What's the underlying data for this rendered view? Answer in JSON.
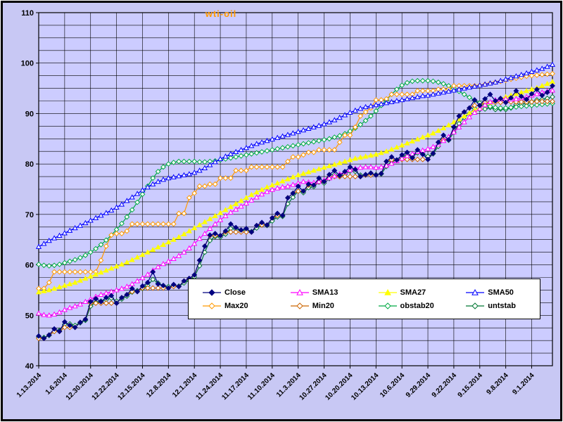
{
  "chart_data": {
    "type": "line",
    "title": "wti-oil",
    "title_color": "#ff9900",
    "chart_bg": "#c8c8f4",
    "plot_bg": "#ccccff",
    "grid_color": "#000000",
    "axis_color": "#000000",
    "ylim": [
      40,
      110
    ],
    "y_minor_step": 2.5,
    "y_tick_labels": [
      110,
      100,
      90,
      80,
      70,
      60,
      50,
      40
    ],
    "x_ticks_every": 5,
    "x_tick_labels": [
      "1.13.2014",
      "1.6.2014",
      "12.30.2014",
      "12.22.2014",
      "12.15.2014",
      "12.8.2014",
      "12.1.2014",
      "11.24.2014",
      "11.17.2014",
      "11.10.2014",
      "11.3.2014",
      "10.27.2014",
      "10.20.2014",
      "10.13.2014",
      "10.6.2014",
      "9.29.2014",
      "9.22.2014",
      "9.15.2014",
      "9.8.2014",
      "9.1.2014"
    ],
    "legend_rows": [
      [
        "Close",
        "SMA13",
        "SMA27",
        "SMA50"
      ],
      [
        "Max20",
        "Min20",
        "obstab20",
        "untstab"
      ]
    ],
    "series": [
      {
        "name": "Close",
        "color": "#000080",
        "marker": "diamond",
        "marker_fill": "solid",
        "values": [
          45.9,
          45.4,
          46.1,
          47.3,
          46.8,
          48.7,
          48.0,
          47.6,
          48.6,
          49.2,
          52.7,
          53.3,
          52.7,
          53.5,
          53.9,
          52.4,
          53.5,
          54.1,
          55.3,
          54.7,
          55.8,
          56.5,
          58.6,
          56.2,
          55.9,
          55.4,
          56.1,
          55.7,
          56.8,
          57.3,
          58.0,
          60.9,
          63.7,
          65.9,
          66.2,
          65.8,
          66.7,
          68.1,
          67.4,
          66.9,
          67.2,
          66.5,
          67.8,
          68.4,
          67.9,
          69.3,
          70.2,
          69.8,
          73.3,
          74.2,
          75.6,
          74.6,
          76.0,
          75.8,
          77.2,
          76.5,
          77.9,
          78.7,
          77.7,
          78.5,
          79.4,
          78.9,
          77.5,
          77.9,
          78.2,
          77.8,
          78.1,
          80.5,
          81.4,
          80.8,
          81.8,
          82.3,
          81.2,
          82.8,
          81.9,
          80.9,
          82.1,
          84.3,
          85.7,
          84.8,
          87.3,
          89.5,
          90.3,
          91.1,
          92.7,
          91.6,
          92.9,
          93.8,
          92.5,
          93.0,
          92.2,
          93.1,
          94.5,
          93.4,
          92.8,
          93.9,
          94.8,
          93.6,
          94.2,
          95.5
        ]
      },
      {
        "name": "SMA13",
        "color": "#ff00ff",
        "marker": "triangle",
        "marker_fill": "open",
        "values": [
          50.4,
          50.1,
          50.0,
          50.2,
          50.6,
          51.1,
          51.5,
          51.8,
          52.2,
          52.7,
          53.2,
          53.7,
          54.1,
          54.4,
          54.7,
          55.0,
          55.3,
          55.7,
          56.2,
          56.8,
          57.4,
          58.1,
          58.9,
          59.6,
          60.2,
          60.7,
          61.2,
          61.8,
          62.5,
          63.3,
          64.2,
          65.2,
          66.2,
          67.2,
          68.1,
          68.9,
          69.7,
          70.4,
          71.0,
          71.6,
          72.2,
          72.8,
          73.4,
          74.0,
          74.5,
          74.9,
          75.2,
          75.4,
          75.6,
          75.9,
          76.2,
          76.5,
          76.4,
          76.3,
          76.5,
          76.8,
          77.2,
          77.6,
          78.0,
          78.4,
          78.8,
          79.1,
          79.3,
          79.4,
          79.4,
          79.3,
          79.4,
          79.7,
          80.1,
          80.6,
          81.1,
          81.6,
          82.0,
          82.4,
          82.7,
          83.0,
          83.4,
          83.9,
          84.6,
          85.4,
          86.3,
          87.3,
          88.3,
          89.3,
          90.2,
          91.0,
          91.7,
          92.3,
          92.7,
          92.9,
          92.9,
          92.8,
          92.9,
          93.1,
          93.3,
          93.6,
          93.9,
          94.2,
          94.4,
          94.6
        ]
      },
      {
        "name": "SMA27",
        "color": "#ffff00",
        "marker": "triangle",
        "marker_fill": "solid",
        "values": [
          54.6,
          54.8,
          55.0,
          55.3,
          55.6,
          55.9,
          56.2,
          56.5,
          56.9,
          57.3,
          57.7,
          58.1,
          58.5,
          58.9,
          59.3,
          59.7,
          60.1,
          60.5,
          61.0,
          61.5,
          62.0,
          62.5,
          63.0,
          63.5,
          64.0,
          64.5,
          65.0,
          65.5,
          66.1,
          66.7,
          67.3,
          67.9,
          68.5,
          69.1,
          69.7,
          70.3,
          70.9,
          71.5,
          72.1,
          72.7,
          73.3,
          73.9,
          74.4,
          74.9,
          75.4,
          75.8,
          76.2,
          76.6,
          77.0,
          77.4,
          77.8,
          78.1,
          78.4,
          78.7,
          79.0,
          79.3,
          79.6,
          79.9,
          80.2,
          80.5,
          80.8,
          81.1,
          81.3,
          81.5,
          81.7,
          81.9,
          82.2,
          82.5,
          82.9,
          83.3,
          83.7,
          84.1,
          84.5,
          84.9,
          85.3,
          85.7,
          86.1,
          86.6,
          87.1,
          87.7,
          88.3,
          88.9,
          89.5,
          90.1,
          90.7,
          91.2,
          91.7,
          92.2,
          92.6,
          93.0,
          93.3,
          93.6,
          93.9,
          94.2,
          94.5,
          94.8,
          95.1,
          95.5,
          95.9,
          96.3
        ]
      },
      {
        "name": "SMA50",
        "color": "#0000ff",
        "marker": "triangle",
        "marker_fill": "open",
        "values": [
          63.6,
          64.2,
          64.8,
          65.3,
          65.8,
          66.3,
          66.8,
          67.3,
          67.8,
          68.3,
          68.8,
          69.3,
          69.8,
          70.3,
          70.8,
          71.4,
          72.0,
          72.7,
          73.4,
          74.1,
          74.8,
          75.4,
          76.0,
          76.5,
          76.9,
          77.2,
          77.4,
          77.6,
          77.8,
          78.0,
          78.3,
          78.7,
          79.2,
          79.8,
          80.4,
          81.0,
          81.5,
          82.0,
          82.4,
          82.8,
          83.2,
          83.6,
          84.0,
          84.3,
          84.6,
          84.9,
          85.2,
          85.5,
          85.8,
          86.1,
          86.4,
          86.7,
          87.0,
          87.3,
          87.6,
          87.9,
          88.3,
          88.7,
          89.2,
          89.7,
          90.2,
          90.6,
          91.0,
          91.3,
          91.5,
          91.7,
          91.9,
          92.1,
          92.3,
          92.5,
          92.7,
          92.9,
          93.1,
          93.3,
          93.5,
          93.6,
          93.8,
          94.0,
          94.2,
          94.4,
          94.6,
          94.8,
          95.0,
          95.2,
          95.4,
          95.6,
          95.8,
          96.0,
          96.2,
          96.5,
          96.8,
          97.1,
          97.4,
          97.7,
          98.0,
          98.3,
          98.6,
          98.9,
          99.3,
          99.7
        ]
      },
      {
        "name": "Max20",
        "color": "#ff9900",
        "marker": "diamond",
        "marker_fill": "open",
        "values": [
          55.3,
          55.3,
          56.5,
          58.6,
          58.6,
          58.6,
          58.6,
          58.6,
          58.6,
          58.6,
          58.6,
          58.6,
          60.9,
          63.7,
          65.9,
          66.2,
          66.2,
          66.7,
          68.1,
          68.1,
          68.1,
          68.1,
          68.1,
          68.1,
          68.1,
          68.1,
          68.1,
          70.2,
          70.2,
          73.3,
          74.2,
          75.6,
          75.6,
          76.0,
          76.0,
          77.2,
          77.2,
          77.2,
          78.7,
          78.7,
          78.7,
          79.4,
          79.4,
          79.4,
          79.4,
          79.4,
          79.4,
          79.4,
          80.5,
          81.4,
          81.4,
          81.8,
          82.3,
          82.3,
          82.8,
          82.8,
          82.8,
          82.8,
          84.3,
          85.7,
          85.7,
          87.3,
          89.5,
          90.3,
          91.1,
          92.7,
          92.7,
          92.9,
          93.8,
          93.8,
          93.8,
          93.8,
          93.8,
          94.5,
          94.5,
          94.5,
          94.5,
          94.8,
          94.8,
          94.8,
          95.5,
          95.5,
          95.5,
          95.5,
          95.5,
          95.6,
          95.8,
          96.0,
          96.2,
          96.4,
          96.6,
          96.8,
          97.0,
          97.2,
          97.4,
          97.5,
          97.6,
          97.7,
          97.8,
          97.9
        ]
      },
      {
        "name": "Min20",
        "color": "#cc6600",
        "marker": "diamond",
        "marker_fill": "open",
        "values": [
          45.4,
          45.4,
          46.1,
          46.8,
          46.8,
          47.6,
          47.6,
          47.6,
          48.6,
          49.2,
          52.4,
          52.4,
          52.4,
          52.4,
          52.4,
          52.4,
          53.5,
          54.1,
          54.7,
          54.7,
          55.4,
          55.4,
          55.4,
          55.4,
          55.4,
          55.4,
          55.7,
          55.7,
          56.8,
          57.3,
          58.0,
          60.9,
          63.7,
          65.8,
          65.8,
          65.8,
          66.5,
          66.5,
          66.5,
          66.5,
          66.5,
          66.5,
          67.8,
          67.9,
          67.9,
          69.3,
          69.8,
          69.8,
          73.3,
          74.2,
          74.6,
          74.6,
          75.8,
          75.8,
          76.5,
          76.5,
          77.5,
          77.5,
          77.5,
          77.5,
          77.5,
          77.5,
          77.5,
          77.8,
          77.8,
          77.8,
          78.1,
          80.5,
          80.8,
          80.8,
          80.9,
          80.9,
          80.9,
          80.9,
          80.9,
          80.9,
          82.1,
          84.3,
          84.8,
          84.8,
          87.3,
          89.5,
          90.3,
          91.1,
          91.6,
          91.6,
          92.2,
          92.2,
          92.2,
          92.2,
          92.2,
          92.3,
          92.3,
          92.3,
          92.3,
          92.3,
          92.4,
          92.4,
          92.4,
          92.4
        ]
      },
      {
        "name": "obstab20",
        "color": "#00aa44",
        "marker": "diamond",
        "marker_fill": "open",
        "values": [
          60.1,
          59.9,
          59.8,
          59.9,
          60.1,
          60.4,
          60.7,
          61.0,
          61.4,
          61.9,
          62.5,
          63.2,
          64.0,
          64.9,
          65.9,
          67.0,
          68.2,
          69.5,
          70.9,
          72.4,
          74.0,
          75.6,
          77.2,
          78.5,
          79.4,
          80.0,
          80.3,
          80.5,
          80.5,
          80.5,
          80.5,
          80.4,
          80.4,
          80.5,
          80.6,
          80.8,
          81.0,
          81.2,
          81.4,
          81.6,
          81.8,
          82.0,
          82.2,
          82.4,
          82.6,
          82.8,
          83.0,
          83.2,
          83.4,
          83.6,
          83.8,
          84.0,
          84.2,
          84.4,
          84.6,
          84.8,
          85.0,
          85.3,
          85.6,
          86.0,
          86.5,
          87.1,
          87.8,
          88.6,
          89.5,
          90.5,
          91.6,
          92.7,
          93.8,
          94.8,
          95.6,
          96.1,
          96.4,
          96.5,
          96.5,
          96.5,
          96.4,
          96.2,
          95.9,
          95.5,
          95.0,
          94.4,
          93.8,
          93.2,
          92.6,
          92.1,
          91.7,
          91.4,
          91.2,
          91.1,
          91.1,
          91.2,
          91.3,
          91.4,
          91.5,
          91.6,
          91.7,
          91.8,
          91.9,
          92.0
        ]
      },
      {
        "name": "untstab",
        "color": "#007733",
        "marker": "diamond",
        "marker_fill": "open",
        "values": [
          45.7,
          45.6,
          46.0,
          46.8,
          47.0,
          48.2,
          48.3,
          48.0,
          48.5,
          49.0,
          51.8,
          52.6,
          52.8,
          53.1,
          53.4,
          52.8,
          53.2,
          53.8,
          54.6,
          54.9,
          55.3,
          55.9,
          57.1,
          56.4,
          55.9,
          55.7,
          55.9,
          55.8,
          56.4,
          56.9,
          57.6,
          59.8,
          62.5,
          64.8,
          65.6,
          65.5,
          66.1,
          67.2,
          67.1,
          66.8,
          66.9,
          66.6,
          67.3,
          67.9,
          67.8,
          68.7,
          69.5,
          69.6,
          72.1,
          73.4,
          74.6,
          74.3,
          75.3,
          75.5,
          76.4,
          76.2,
          77.1,
          77.9,
          77.5,
          77.9,
          78.6,
          78.5,
          77.8,
          77.8,
          78.0,
          77.9,
          78.0,
          79.5,
          80.6,
          80.7,
          81.3,
          81.8,
          81.4,
          82.2,
          82.0,
          81.5,
          82.0,
          83.5,
          84.8,
          84.7,
          86.3,
          88.0,
          89.2,
          90.0,
          91.0,
          90.8,
          90.9,
          91.2,
          90.8,
          90.9,
          90.8,
          91.1,
          91.8,
          91.9,
          92.0,
          92.3,
          92.7,
          92.8,
          93.0,
          93.3
        ]
      }
    ]
  }
}
